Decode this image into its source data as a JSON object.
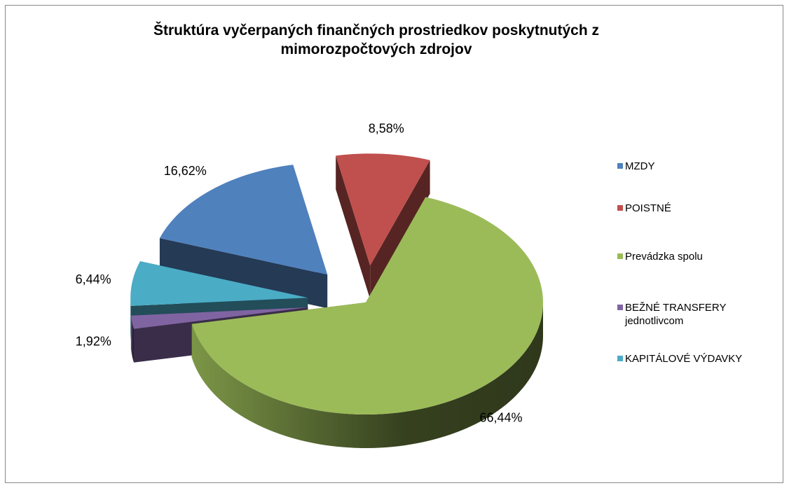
{
  "chart_data": {
    "type": "pie",
    "title": "Štruktúra vyčerpaných finančných prostriedkov poskytnutých z mimorozpočtových zdrojov",
    "categories": [
      "MZDY",
      "POISTNÉ",
      "Prevádzka spolu",
      "BEŽNÉ TRANSFERY jednotlivcom",
      "KAPITÁLOVÉ VÝDAVKY"
    ],
    "values": [
      16.62,
      8.58,
      66.44,
      1.92,
      6.44
    ],
    "value_labels": [
      "16,62%",
      "8,58%",
      "66,44%",
      "1,92%",
      "6,44%"
    ],
    "colors": [
      "#4f81bd",
      "#c0504d",
      "#9bbb59",
      "#8064a2",
      "#4bacc6"
    ],
    "legend": "right"
  }
}
